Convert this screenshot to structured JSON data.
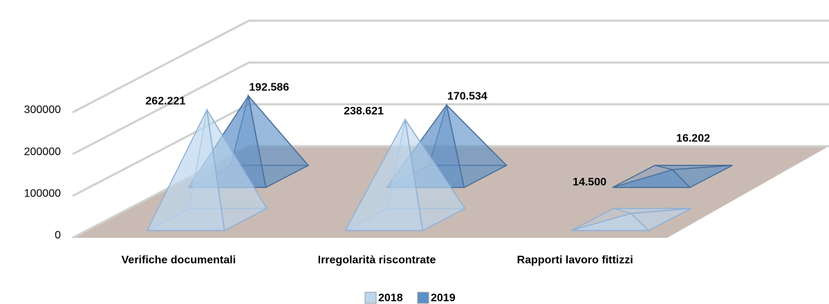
{
  "chart_data": {
    "type": "pyramid3d",
    "categories": [
      "Verifiche documentali",
      "Irregolarità riscontrate",
      "Rapporti lavoro fittizzi"
    ],
    "series": [
      {
        "name": "2018",
        "color": "#bdd7ee",
        "values": [
          262221,
          238621,
          14500
        ],
        "value_labels": [
          "262.221",
          "238.621",
          "14.500"
        ]
      },
      {
        "name": "2019",
        "color": "#5b8fc7",
        "values": [
          192586,
          170534,
          16202
        ],
        "value_labels": [
          "192.586",
          "170.534",
          "16.202"
        ]
      }
    ],
    "ylim": [
      0,
      300000
    ],
    "yticks": [
      0,
      100000,
      200000,
      300000
    ],
    "grid": true,
    "legend": "bottom"
  }
}
